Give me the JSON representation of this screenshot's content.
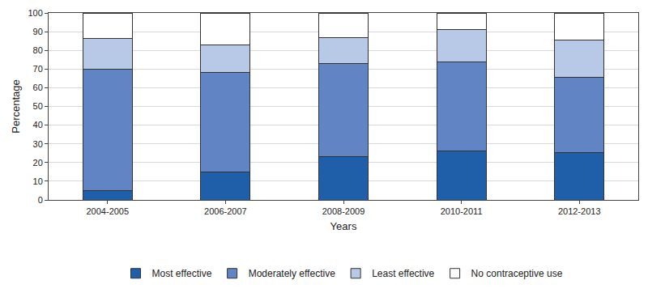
{
  "chart_data": {
    "type": "bar",
    "stacked": true,
    "x_label": "Years",
    "y_label": "Percentage",
    "categories": [
      "2004-2005",
      "2006-2007",
      "2008-2009",
      "2010-2011",
      "2012-2013"
    ],
    "series": [
      {
        "name": "Most effective",
        "color": "#1f5ea8",
        "values": [
          5,
          15,
          23,
          26,
          25.5
        ]
      },
      {
        "name": "Moderately effective",
        "color": "#6184c4",
        "values": [
          65,
          53,
          50,
          48,
          40
        ]
      },
      {
        "name": "Least effective",
        "color": "#b7c9e6",
        "values": [
          16.5,
          15,
          14,
          17,
          20
        ]
      },
      {
        "name": "No contraceptive use",
        "color": "#ffffff",
        "values": [
          13.5,
          17,
          13,
          9,
          14.5
        ]
      }
    ],
    "ylim": [
      0,
      100
    ],
    "yticks": [
      0,
      10,
      20,
      30,
      40,
      50,
      60,
      70,
      80,
      90,
      100
    ],
    "grid": true,
    "legend": "bottom"
  }
}
